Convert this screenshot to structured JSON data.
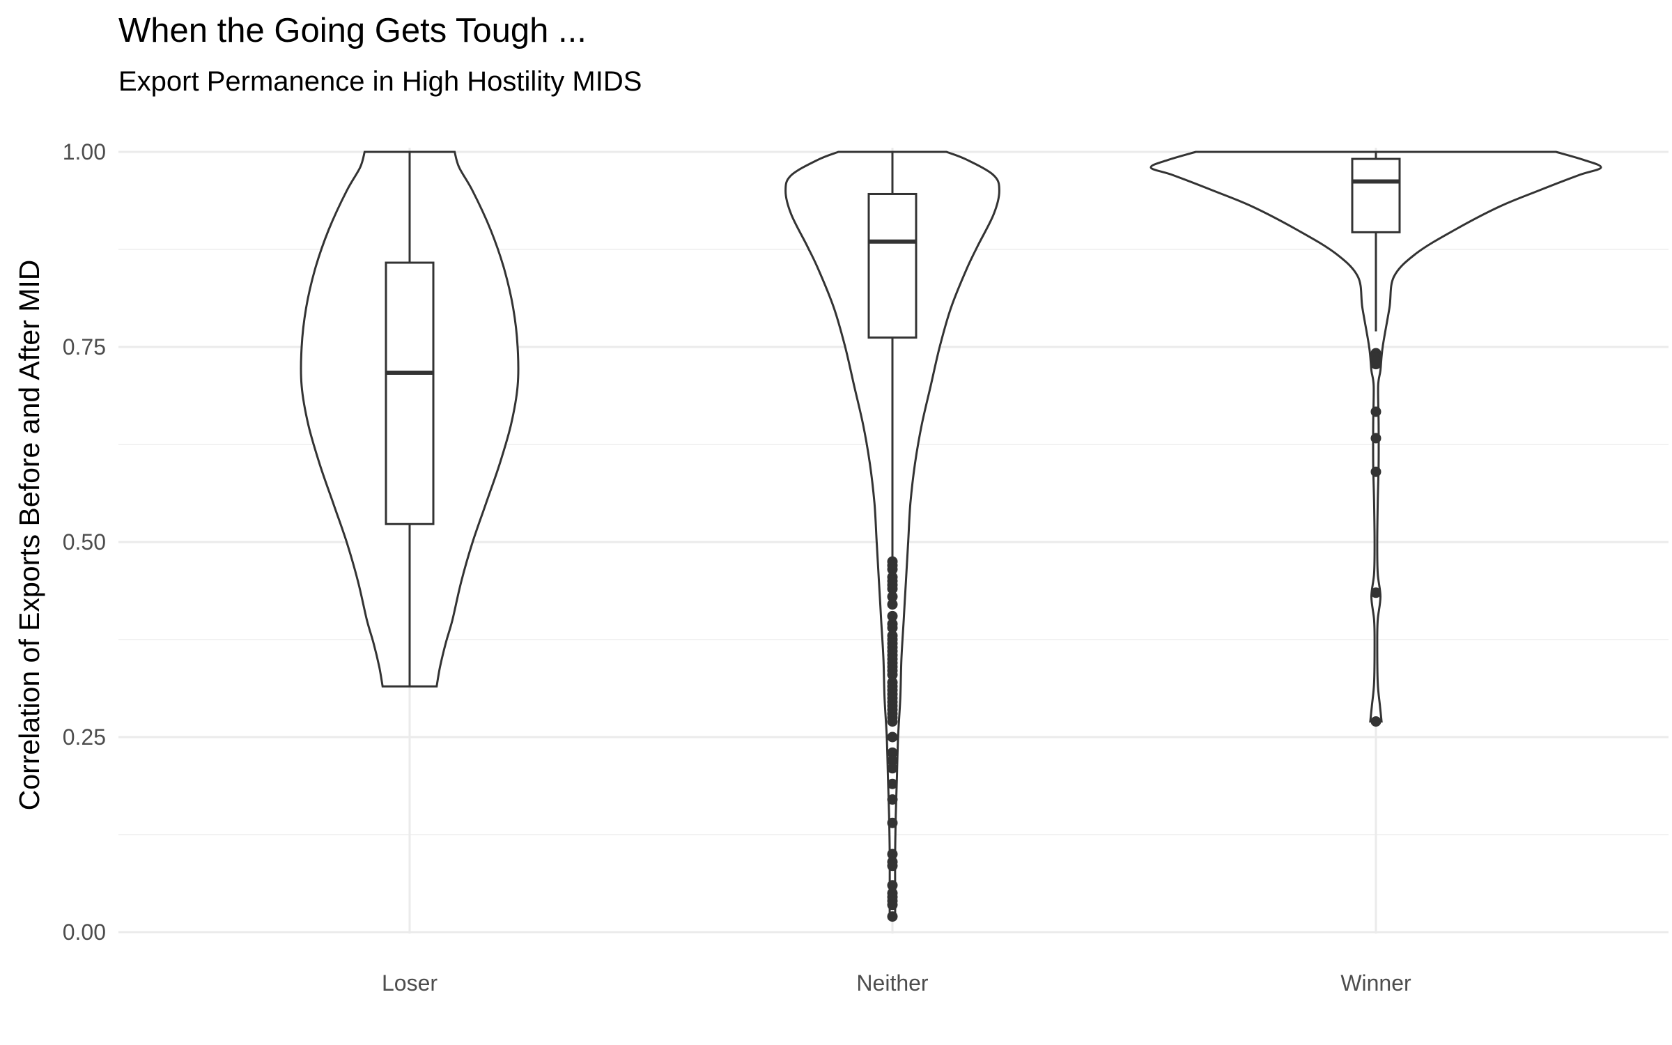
{
  "chart_data": {
    "type": "violin",
    "title": "When the Going Gets Tough ...",
    "subtitle": "Export Permanence in High Hostility MIDS",
    "ylabel": "Correlation of Exports Before and After MID",
    "xlabel": "",
    "categories": [
      "Loser",
      "Neither",
      "Winner"
    ],
    "ylim": [
      0,
      1
    ],
    "yticks": [
      {
        "value": 0.0,
        "label": "0.00"
      },
      {
        "value": 0.25,
        "label": "0.25"
      },
      {
        "value": 0.5,
        "label": "0.50"
      },
      {
        "value": 0.75,
        "label": "0.75"
      },
      {
        "value": 1.0,
        "label": "1.00"
      }
    ],
    "grid": true,
    "legend": "none",
    "colors": {
      "line": "#333333",
      "fill": "#ffffff",
      "grid": "#ebebeb"
    },
    "groups": [
      {
        "category": "Loser",
        "box": {
          "whisker_low": 0.315,
          "q1": 0.523,
          "median": 0.717,
          "q3": 0.858,
          "whisker_high": 1.0
        },
        "outliers": [],
        "density": [
          [
            0.315,
            0.12
          ],
          [
            0.34,
            0.135
          ],
          [
            0.37,
            0.16
          ],
          [
            0.4,
            0.19
          ],
          [
            0.45,
            0.23
          ],
          [
            0.5,
            0.28
          ],
          [
            0.55,
            0.34
          ],
          [
            0.6,
            0.4
          ],
          [
            0.65,
            0.45
          ],
          [
            0.7,
            0.48
          ],
          [
            0.75,
            0.48
          ],
          [
            0.8,
            0.46
          ],
          [
            0.85,
            0.42
          ],
          [
            0.9,
            0.36
          ],
          [
            0.95,
            0.28
          ],
          [
            0.98,
            0.22
          ],
          [
            1.0,
            0.2
          ]
        ]
      },
      {
        "category": "Neither",
        "box": {
          "whisker_low": 0.475,
          "q1": 0.762,
          "median": 0.885,
          "q3": 0.946,
          "whisker_high": 1.0
        },
        "outliers": [
          0.475,
          0.47,
          0.465,
          0.455,
          0.45,
          0.445,
          0.44,
          0.43,
          0.42,
          0.405,
          0.395,
          0.39,
          0.38,
          0.375,
          0.37,
          0.365,
          0.36,
          0.355,
          0.35,
          0.345,
          0.34,
          0.335,
          0.33,
          0.32,
          0.315,
          0.31,
          0.305,
          0.3,
          0.295,
          0.29,
          0.285,
          0.28,
          0.275,
          0.27,
          0.25,
          0.23,
          0.22,
          0.21,
          0.19,
          0.17,
          0.14,
          0.1,
          0.09,
          0.085,
          0.06,
          0.05,
          0.045,
          0.04,
          0.035,
          0.02
        ],
        "density": [
          [
            0.02,
            0.012
          ],
          [
            0.05,
            0.012
          ],
          [
            0.1,
            0.012
          ],
          [
            0.15,
            0.015
          ],
          [
            0.2,
            0.02
          ],
          [
            0.25,
            0.025
          ],
          [
            0.3,
            0.035
          ],
          [
            0.35,
            0.04
          ],
          [
            0.4,
            0.05
          ],
          [
            0.45,
            0.06
          ],
          [
            0.5,
            0.07
          ],
          [
            0.55,
            0.08
          ],
          [
            0.6,
            0.1
          ],
          [
            0.65,
            0.13
          ],
          [
            0.7,
            0.17
          ],
          [
            0.75,
            0.21
          ],
          [
            0.8,
            0.26
          ],
          [
            0.85,
            0.33
          ],
          [
            0.88,
            0.38
          ],
          [
            0.92,
            0.45
          ],
          [
            0.95,
            0.475
          ],
          [
            0.97,
            0.45
          ],
          [
            0.99,
            0.33
          ],
          [
            1.0,
            0.24
          ]
        ]
      },
      {
        "category": "Winner",
        "box": {
          "whisker_low": 0.77,
          "q1": 0.897,
          "median": 0.962,
          "q3": 0.991,
          "whisker_high": 1.0
        },
        "outliers": [
          0.742,
          0.737,
          0.732,
          0.728,
          0.667,
          0.633,
          0.59,
          0.435,
          0.27
        ],
        "density": [
          [
            0.27,
            0.025
          ],
          [
            0.29,
            0.018
          ],
          [
            0.32,
            0.008
          ],
          [
            0.37,
            0.006
          ],
          [
            0.4,
            0.008
          ],
          [
            0.43,
            0.02
          ],
          [
            0.46,
            0.008
          ],
          [
            0.5,
            0.006
          ],
          [
            0.55,
            0.008
          ],
          [
            0.6,
            0.012
          ],
          [
            0.65,
            0.012
          ],
          [
            0.7,
            0.01
          ],
          [
            0.72,
            0.02
          ],
          [
            0.75,
            0.03
          ],
          [
            0.8,
            0.06
          ],
          [
            0.84,
            0.08
          ],
          [
            0.87,
            0.18
          ],
          [
            0.9,
            0.35
          ],
          [
            0.93,
            0.55
          ],
          [
            0.95,
            0.72
          ],
          [
            0.97,
            0.9
          ],
          [
            0.98,
            1.0
          ],
          [
            0.99,
            0.92
          ],
          [
            1.0,
            0.8
          ]
        ]
      }
    ]
  }
}
